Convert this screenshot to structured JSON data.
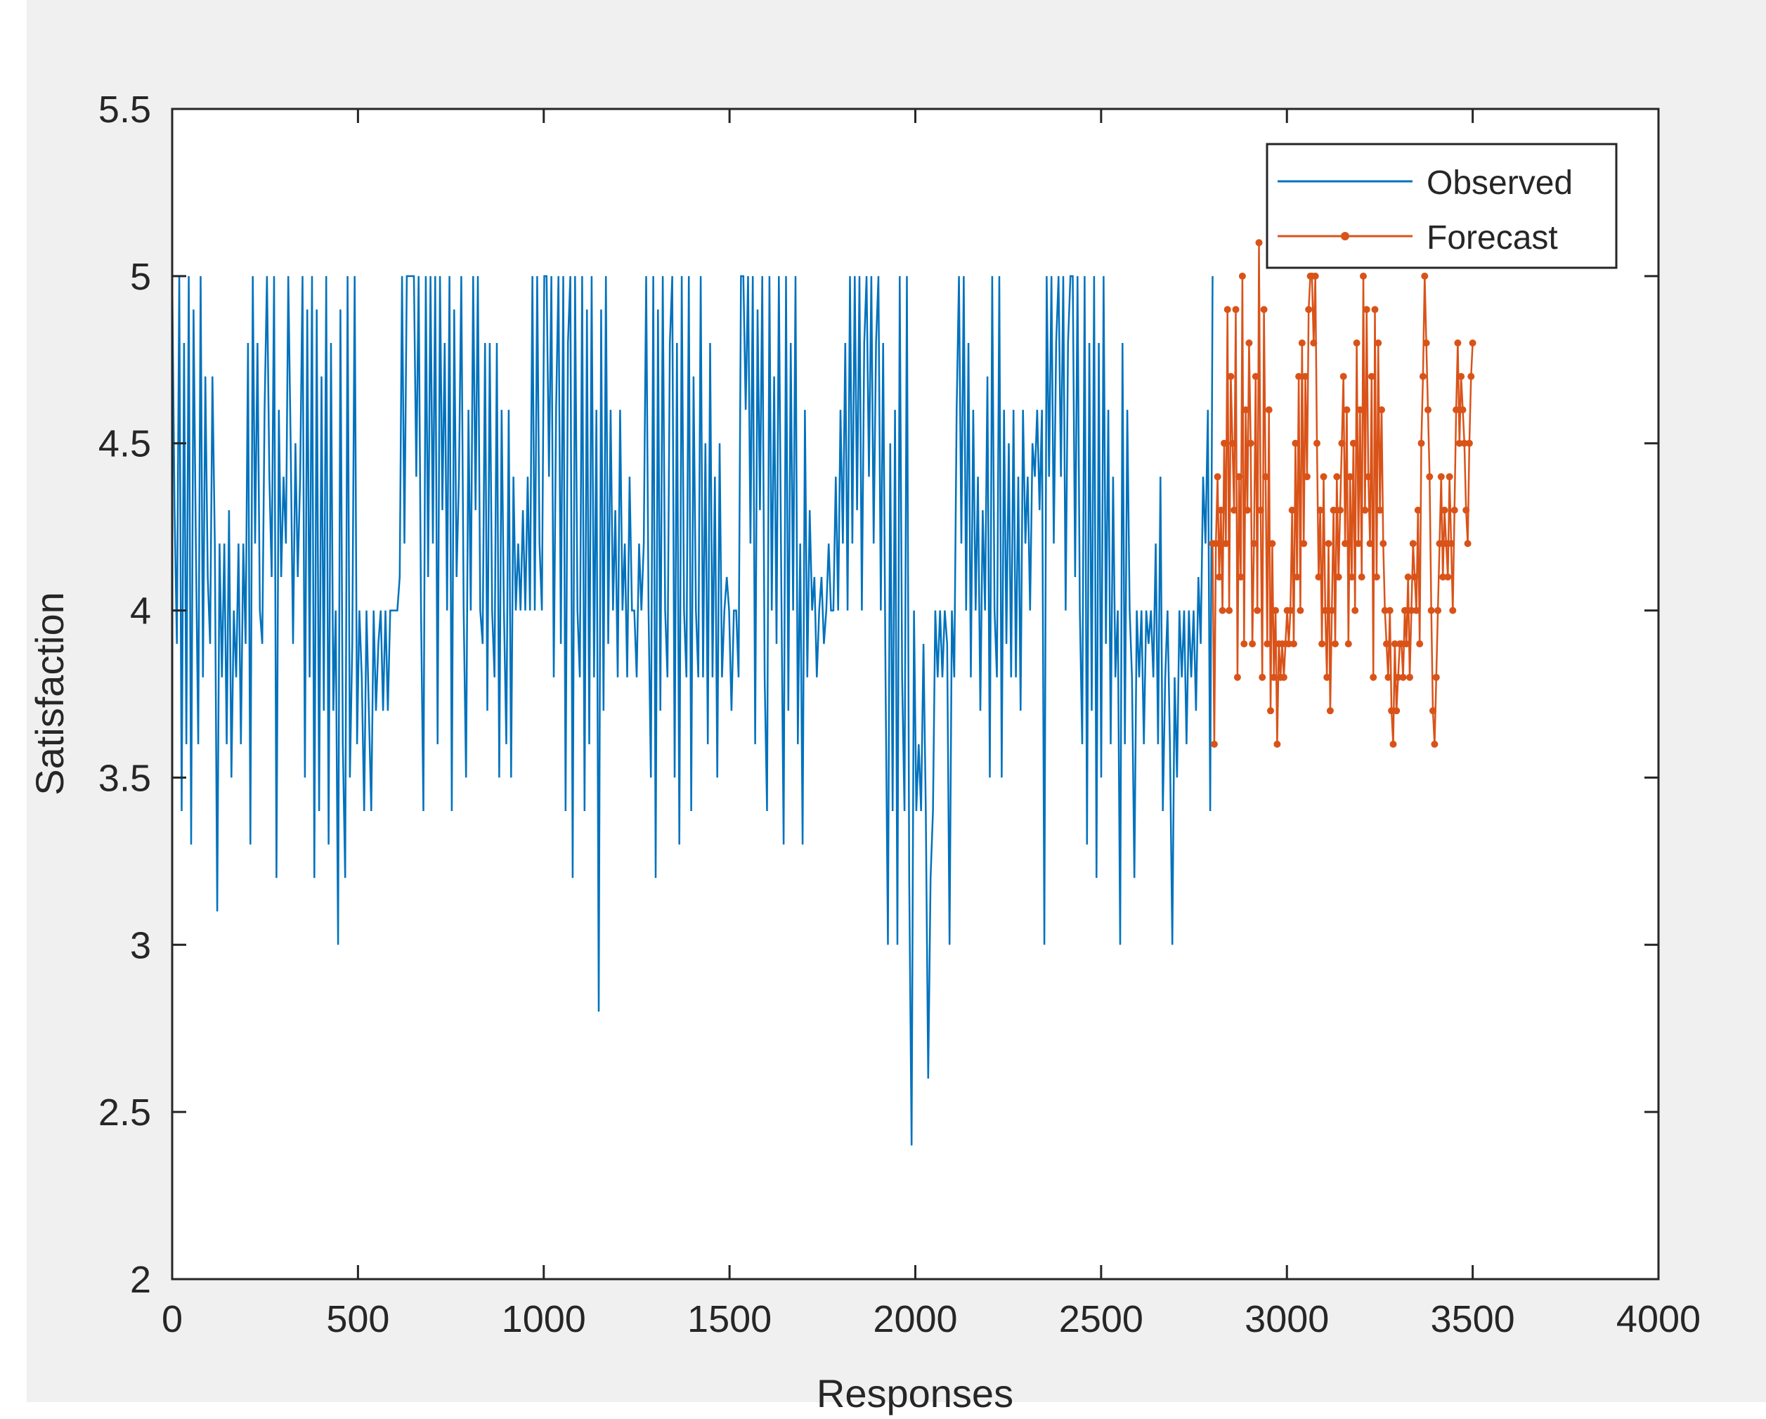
{
  "chart_data": {
    "type": "line",
    "title": "",
    "xlabel": "Responses",
    "ylabel": "Satisfaction",
    "xlim": [
      0,
      4000
    ],
    "ylim": [
      2,
      5.5
    ],
    "xticks": [
      0,
      500,
      1000,
      1500,
      2000,
      2500,
      3000,
      3500,
      4000
    ],
    "yticks": [
      2,
      2.5,
      3,
      3.5,
      4,
      4.5,
      5,
      5.5
    ],
    "xtick_labels": [
      "0",
      "500",
      "1000",
      "1500",
      "2000",
      "2500",
      "3000",
      "3500",
      "4000"
    ],
    "ytick_labels": [
      "2",
      "2.5",
      "3",
      "3.5",
      "4",
      "4.5",
      "5",
      "5.5"
    ],
    "grid": false,
    "legend_position": "top-right",
    "series": [
      {
        "name": "Observed",
        "color": "#0072BD",
        "marker": "none",
        "x_range": [
          0,
          2800
        ],
        "values": [
          5.0,
          4.3,
          3.9,
          5.0,
          3.4,
          4.8,
          3.6,
          5.0,
          3.3,
          4.9,
          4.2,
          3.6,
          5.0,
          3.8,
          4.7,
          4.1,
          3.9,
          4.7,
          4.2,
          3.1,
          4.2,
          3.8,
          4.2,
          3.6,
          4.3,
          3.5,
          4.0,
          3.8,
          4.2,
          3.6,
          4.2,
          3.9,
          4.8,
          3.3,
          5.0,
          4.2,
          4.8,
          4.0,
          3.9,
          4.6,
          5.0,
          4.4,
          4.1,
          5.0,
          3.2,
          4.6,
          4.1,
          4.4,
          4.2,
          5.0,
          4.5,
          3.9,
          4.5,
          4.1,
          4.4,
          5.0,
          3.5,
          4.9,
          3.8,
          5.0,
          3.2,
          4.9,
          3.4,
          4.7,
          3.7,
          5.0,
          3.3,
          4.8,
          3.7,
          4.0,
          3.0,
          4.9,
          3.6,
          3.2,
          5.0,
          3.5,
          3.9,
          5.0,
          3.6,
          4.0,
          3.8,
          3.4,
          4.0,
          3.7,
          3.4,
          4.0,
          3.7,
          3.9,
          4.0,
          3.7,
          4.0,
          3.7,
          4.0,
          4.0,
          4.0,
          4.0,
          4.1,
          5.0,
          4.2,
          5.0,
          5.0,
          5.0,
          5.0,
          4.4,
          5.0,
          4.0,
          3.4,
          5.0,
          4.1,
          5.0,
          4.2,
          5.0,
          3.6,
          5.0,
          4.3,
          4.8,
          4.0,
          5.0,
          3.4,
          4.9,
          4.1,
          4.4,
          5.0,
          4.0,
          3.5,
          4.6,
          4.0,
          5.0,
          4.3,
          5.0,
          4.0,
          3.9,
          4.8,
          3.7,
          4.8,
          4.0,
          3.8,
          4.8,
          3.5,
          4.6,
          4.0,
          3.6,
          4.6,
          3.5,
          4.4,
          4.0,
          4.2,
          4.0,
          4.3,
          4.0,
          4.4,
          4.0,
          5.0,
          4.0,
          5.0,
          4.2,
          4.0,
          5.0,
          5.0,
          4.4,
          5.0,
          3.8,
          4.6,
          5.0,
          3.9,
          5.0,
          3.4,
          4.8,
          5.0,
          3.2,
          5.0,
          4.0,
          3.8,
          5.0,
          3.4,
          4.9,
          3.6,
          5.0,
          3.8,
          4.6,
          2.8,
          4.9,
          3.7,
          5.0,
          3.9,
          4.6,
          4.0,
          4.3,
          3.8,
          4.6,
          4.0,
          4.2,
          3.8,
          4.4,
          4.0,
          4.0,
          3.8,
          4.2,
          4.0,
          4.2,
          5.0,
          4.0,
          3.5,
          5.0,
          3.2,
          4.9,
          3.7,
          5.0,
          4.0,
          3.8,
          4.8,
          5.0,
          3.5,
          4.8,
          3.3,
          5.0,
          4.0,
          3.8,
          5.0,
          3.4,
          4.7,
          4.0,
          3.8,
          5.0,
          3.8,
          4.5,
          3.6,
          4.8,
          3.8,
          4.4,
          3.5,
          4.5,
          3.8,
          4.0,
          4.1,
          4.0,
          3.7,
          4.0,
          4.0,
          3.8,
          5.0,
          5.0,
          4.6,
          5.0,
          4.2,
          5.0,
          3.6,
          4.9,
          4.3,
          5.0,
          3.8,
          3.4,
          5.0,
          4.0,
          4.7,
          3.9,
          5.0,
          4.1,
          3.3,
          5.0,
          3.7,
          4.8,
          4.0,
          5.0,
          3.6,
          4.2,
          3.3,
          4.6,
          3.8,
          4.3,
          4.0,
          4.1,
          3.8,
          4.0,
          4.1,
          3.9,
          4.0,
          4.2,
          4.0,
          4.0,
          4.4,
          4.0,
          4.6,
          4.2,
          4.8,
          4.0,
          5.0,
          4.2,
          5.0,
          4.3,
          5.0,
          4.0,
          4.8,
          5.0,
          4.4,
          5.0,
          4.2,
          4.8,
          5.0,
          4.0,
          4.8,
          3.8,
          3.0,
          4.5,
          3.4,
          4.6,
          3.0,
          5.0,
          3.8,
          3.4,
          5.0,
          3.2,
          2.4,
          4.0,
          3.4,
          3.6,
          3.4,
          3.9,
          3.4,
          2.6,
          3.2,
          3.4,
          4.0,
          3.8,
          4.0,
          3.8,
          4.0,
          3.9,
          3.0,
          4.0,
          3.8,
          4.6,
          5.0,
          4.2,
          5.0,
          4.0,
          4.8,
          3.8,
          4.6,
          4.0,
          4.4,
          3.7,
          4.3,
          4.0,
          4.7,
          3.5,
          5.0,
          4.0,
          3.8,
          5.0,
          3.5,
          4.6,
          3.9,
          4.5,
          3.8,
          4.6,
          3.8,
          4.4,
          3.7,
          4.6,
          4.2,
          4.4,
          4.0,
          4.5,
          4.4,
          4.6,
          4.3,
          4.6,
          3.0,
          5.0,
          4.4,
          5.0,
          4.2,
          4.8,
          5.0,
          4.4,
          5.0,
          4.0,
          4.8,
          5.0,
          5.0,
          4.1,
          5.0,
          4.0,
          3.6,
          5.0,
          3.3,
          4.8,
          3.7,
          5.0,
          3.2,
          4.8,
          3.5,
          5.0,
          3.9,
          4.6,
          3.6,
          4.4,
          3.8,
          4.0,
          3.0,
          4.8,
          3.6,
          4.6,
          4.0,
          3.8,
          3.2,
          4.0,
          3.8,
          4.0,
          3.6,
          4.0,
          3.9,
          4.0,
          3.8,
          4.2,
          3.6,
          4.4,
          3.4,
          3.8,
          4.0,
          3.6,
          3.0,
          3.8,
          3.5,
          4.0,
          3.8,
          4.0,
          3.6,
          4.0,
          3.8,
          4.0,
          3.7,
          4.1,
          3.9,
          4.4,
          4.2,
          4.6,
          3.4,
          5.0
        ]
      },
      {
        "name": "Forecast",
        "color": "#D95319",
        "marker": "dot",
        "x_range": [
          2800,
          3500
        ],
        "values": [
          4.2,
          3.6,
          4.2,
          4.4,
          4.1,
          4.3,
          4.0,
          4.5,
          4.2,
          4.9,
          4.0,
          4.7,
          4.5,
          4.3,
          4.9,
          3.8,
          4.4,
          4.1,
          5.0,
          3.9,
          4.6,
          4.3,
          4.8,
          4.5,
          3.9,
          4.2,
          4.7,
          4.0,
          5.1,
          4.3,
          3.8,
          4.9,
          4.4,
          3.9,
          4.6,
          3.7,
          4.2,
          3.8,
          4.0,
          3.6,
          3.9,
          3.8,
          3.9,
          3.8,
          3.9,
          4.0,
          3.9,
          4.0,
          4.3,
          3.9,
          4.5,
          4.1,
          4.7,
          4.0,
          4.8,
          4.2,
          4.7,
          4.4,
          4.9,
          5.0,
          5.0,
          4.8,
          5.0,
          4.5,
          4.1,
          4.3,
          3.9,
          4.4,
          4.0,
          3.8,
          4.2,
          3.7,
          4.0,
          4.3,
          3.9,
          4.4,
          4.1,
          4.3,
          4.5,
          4.7,
          4.2,
          4.6,
          3.9,
          4.4,
          4.1,
          4.5,
          4.0,
          4.8,
          4.2,
          4.6,
          4.1,
          5.0,
          4.3,
          4.9,
          4.4,
          4.2,
          4.7,
          3.8,
          4.9,
          4.1,
          4.8,
          4.3,
          4.6,
          4.2,
          4.0,
          3.9,
          3.8,
          4.0,
          3.7,
          3.6,
          3.9,
          3.7,
          3.8,
          3.9,
          3.9,
          3.8,
          4.0,
          3.9,
          4.1,
          3.8,
          4.0,
          4.2,
          4.1,
          4.0,
          4.3,
          3.9,
          4.5,
          4.7,
          5.0,
          4.8,
          4.6,
          4.4,
          4.0,
          3.7,
          3.6,
          3.8,
          4.0,
          4.2,
          4.4,
          4.1,
          4.3,
          4.2,
          4.1,
          4.4,
          4.2,
          4.0,
          4.3,
          4.6,
          4.8,
          4.5,
          4.7,
          4.6,
          4.5,
          4.3,
          4.2,
          4.5,
          4.7,
          4.8
        ]
      }
    ]
  },
  "legend": {
    "items": [
      {
        "label": "Observed",
        "color": "#0072BD",
        "marker": "none"
      },
      {
        "label": "Forecast",
        "color": "#D95319",
        "marker": "dot"
      }
    ]
  },
  "colors": {
    "figure_background": "#f0f0f0",
    "axes_background": "#ffffff",
    "axis_color": "#262626"
  }
}
